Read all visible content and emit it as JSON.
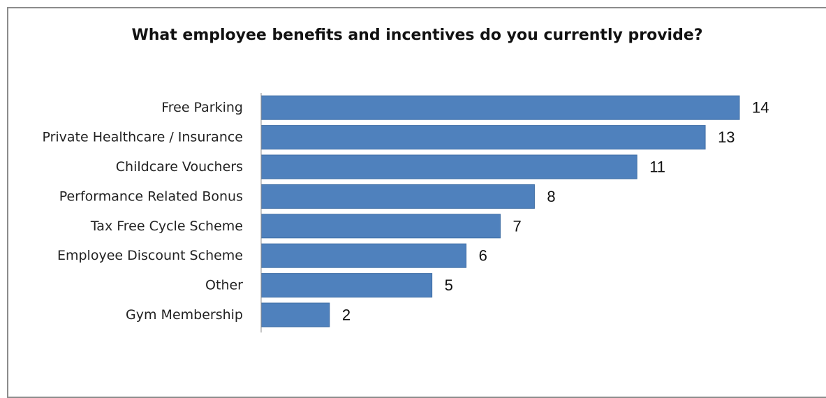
{
  "chart_data": {
    "type": "bar",
    "orientation": "horizontal",
    "title": "What employee benefits and incentives do you currently provide?",
    "categories": [
      "Free Parking",
      "Private Healthcare / Insurance",
      "Childcare Vouchers",
      "Performance Related Bonus",
      "Tax Free Cycle Scheme",
      "Employee Discount Scheme",
      "Other",
      "Gym Membership"
    ],
    "values": [
      14,
      13,
      11,
      8,
      7,
      6,
      5,
      2
    ],
    "xlim": [
      0,
      14
    ],
    "data_labels": true,
    "grid": false,
    "legend": "none",
    "colors": {
      "bar": "#4f81bd",
      "bar_edge": "#3f6ea5",
      "axis": "#8c8c8c"
    }
  }
}
